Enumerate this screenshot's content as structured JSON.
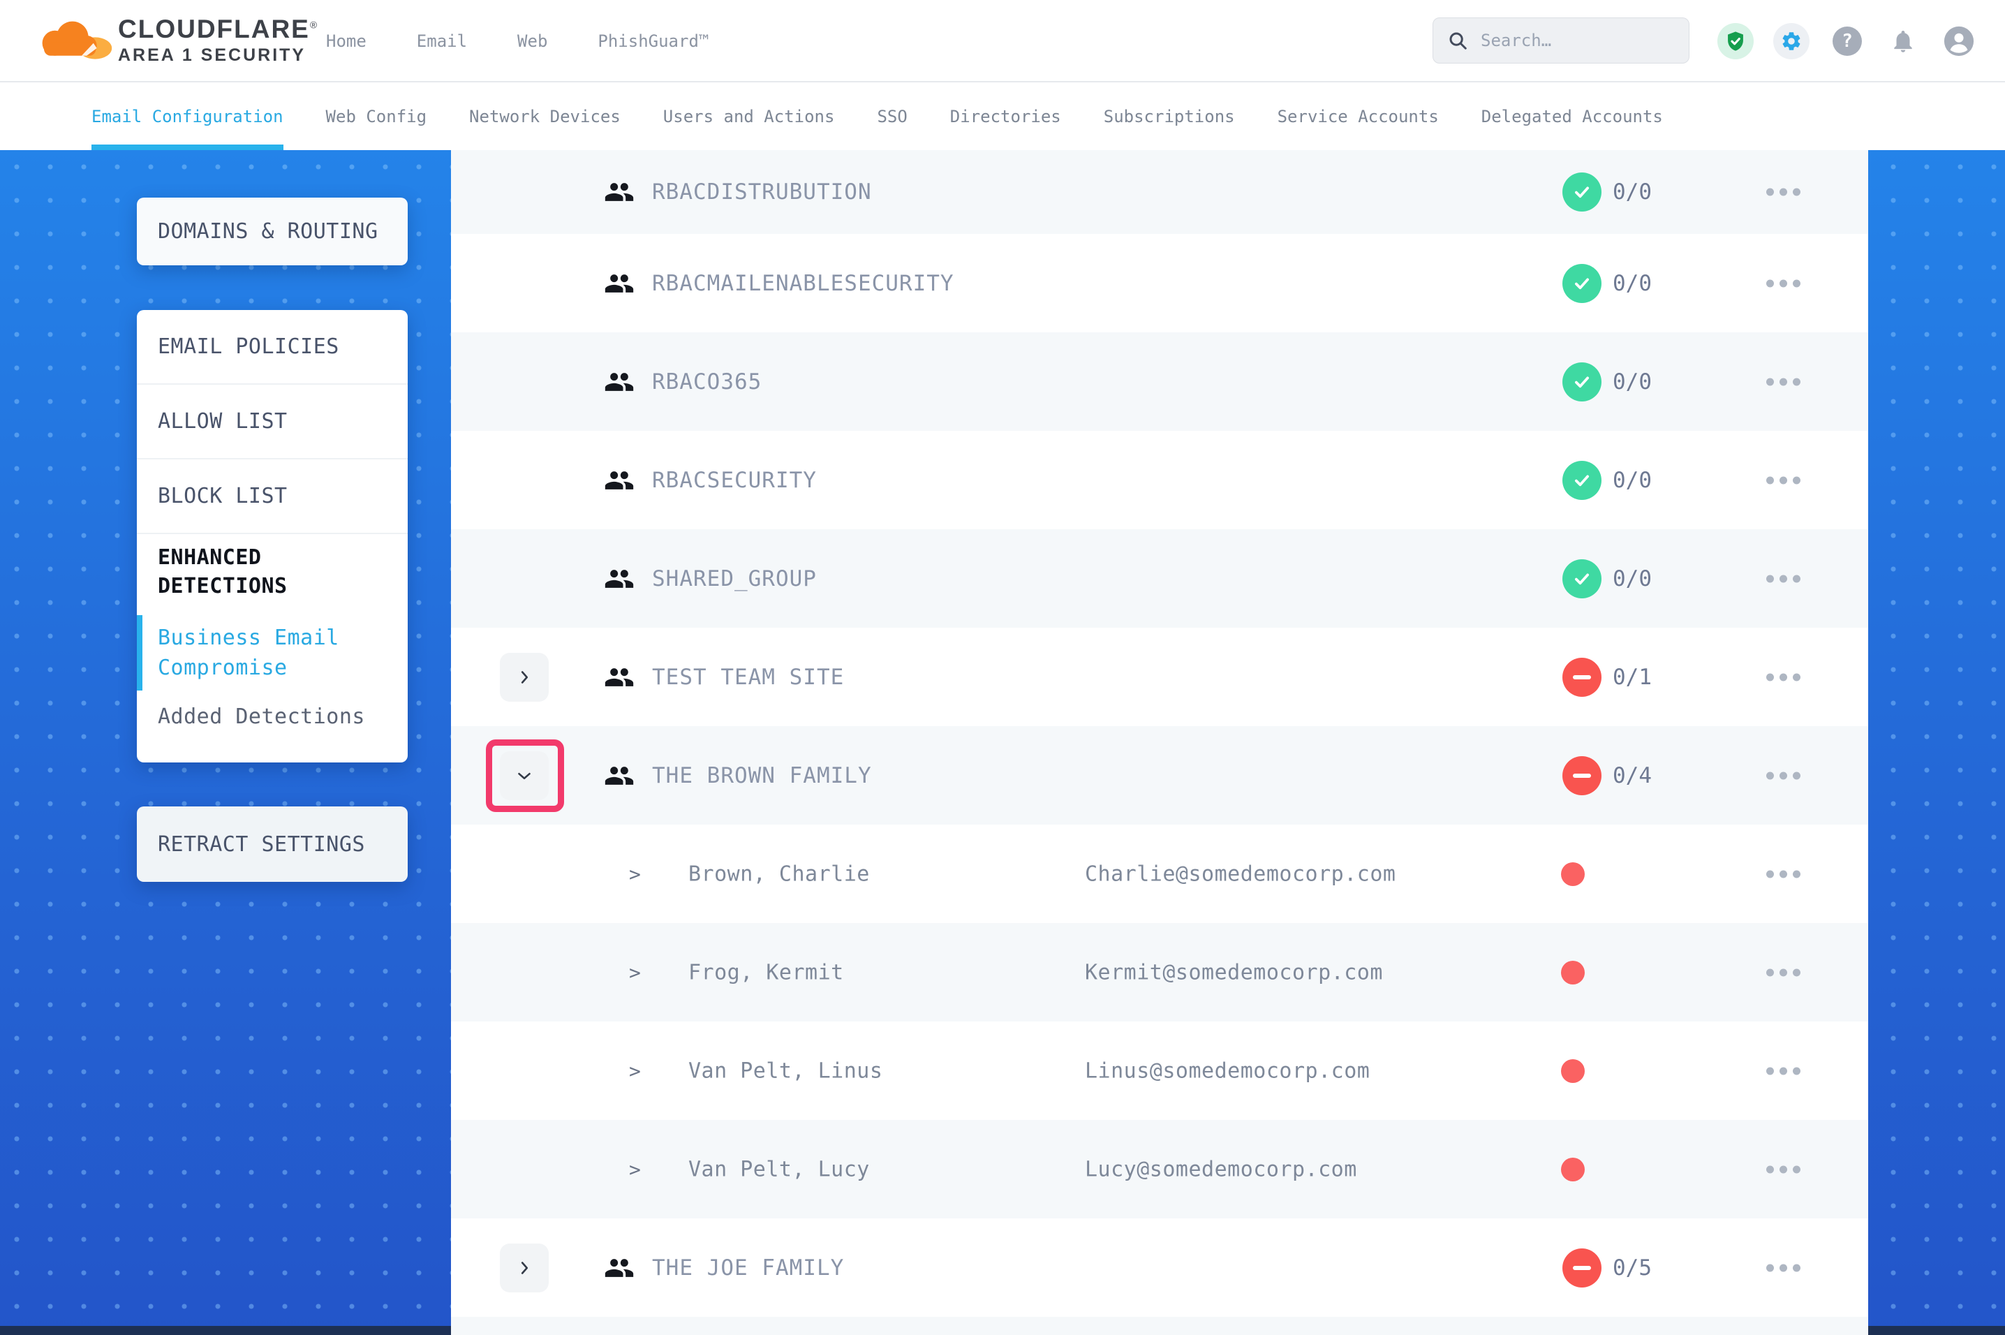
{
  "header": {
    "logo": {
      "brand": "CLOUDFLARE",
      "reg": "®",
      "sub": "AREA 1 SECURITY"
    },
    "nav": [
      "Home",
      "Email",
      "Web",
      "PhishGuard™"
    ],
    "search": {
      "placeholder": "Search…"
    },
    "icons": [
      "security-shield-icon",
      "settings-gear-icon",
      "help-icon",
      "notifications-bell-icon",
      "account-avatar-icon"
    ]
  },
  "tabs": [
    {
      "label": "Email Configuration",
      "active": true
    },
    {
      "label": "Web Config",
      "active": false
    },
    {
      "label": "Network Devices",
      "active": false
    },
    {
      "label": "Users and Actions",
      "active": false
    },
    {
      "label": "SSO",
      "active": false
    },
    {
      "label": "Directories",
      "active": false
    },
    {
      "label": "Subscriptions",
      "active": false
    },
    {
      "label": "Service Accounts",
      "active": false
    },
    {
      "label": "Delegated Accounts",
      "active": false
    }
  ],
  "sidebar": {
    "domains_card": "DOMAINS & ROUTING",
    "menu": [
      {
        "label": "EMAIL POLICIES",
        "type": "item"
      },
      {
        "label": "ALLOW LIST",
        "type": "item"
      },
      {
        "label": "BLOCK LIST",
        "type": "item"
      },
      {
        "label": "ENHANCED DETECTIONS",
        "type": "section"
      },
      {
        "label": "Business Email Compromise",
        "type": "sub-active"
      },
      {
        "label": "Added Detections",
        "type": "sub"
      }
    ],
    "retract_card": "RETRACT SETTINGS"
  },
  "table": {
    "rows": [
      {
        "kind": "group",
        "name": "RBACDISTRUBUTION",
        "status": "ok",
        "count": "0/0"
      },
      {
        "kind": "group",
        "name": "RBACMAILENABLESECURITY",
        "status": "ok",
        "count": "0/0"
      },
      {
        "kind": "group",
        "name": "RBACO365",
        "status": "ok",
        "count": "0/0"
      },
      {
        "kind": "group",
        "name": "RBACSECURITY",
        "status": "ok",
        "count": "0/0"
      },
      {
        "kind": "group",
        "name": "SHARED_GROUP",
        "status": "ok",
        "count": "0/0"
      },
      {
        "kind": "group",
        "name": "TEST TEAM SITE",
        "status": "blocked",
        "count": "0/1",
        "expand": "collapsed"
      },
      {
        "kind": "group",
        "name": "THE BROWN FAMILY",
        "status": "blocked",
        "count": "0/4",
        "expand": "expanded",
        "highlighted": true
      },
      {
        "kind": "member",
        "name": "Brown, Charlie",
        "email": "Charlie@somedemocorp.com"
      },
      {
        "kind": "member",
        "name": "Frog, Kermit",
        "email": "Kermit@somedemocorp.com"
      },
      {
        "kind": "member",
        "name": "Van Pelt, Linus",
        "email": "Linus@somedemocorp.com"
      },
      {
        "kind": "member",
        "name": "Van Pelt, Lucy",
        "email": "Lucy@somedemocorp.com"
      },
      {
        "kind": "group",
        "name": "THE JOE FAMILY",
        "status": "blocked",
        "count": "0/5",
        "expand": "collapsed"
      }
    ]
  },
  "colors": {
    "accent_cyan": "#29a9e2",
    "ok_teal": "#3fd9a2",
    "blocked_red": "#f9544f",
    "member_dot_red": "#fa6262",
    "highlight_pink": "#f23a6b",
    "blue_bg_top": "#2483e9",
    "blue_bg_bottom": "#2355c9",
    "cloudflare_orange": "#f6821f"
  }
}
